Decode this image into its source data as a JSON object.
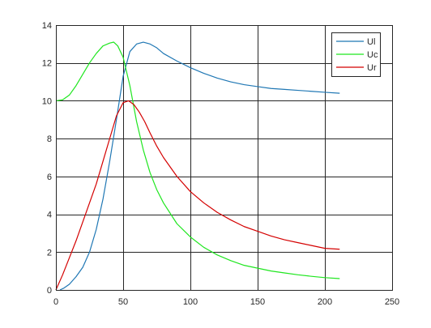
{
  "chart_data": {
    "type": "line",
    "title": "",
    "xlabel": "",
    "ylabel": "",
    "xlim": [
      0,
      250
    ],
    "ylim": [
      0,
      14
    ],
    "xticks": [
      0,
      50,
      100,
      150,
      200,
      250
    ],
    "yticks": [
      0,
      2,
      4,
      6,
      8,
      10,
      12,
      14
    ],
    "xtick_labels": [
      "0",
      "50",
      "100",
      "150",
      "200",
      "250"
    ],
    "ytick_labels": [
      "0",
      "2",
      "4",
      "6",
      "8",
      "10",
      "12",
      "14"
    ],
    "grid": true,
    "legend": "top-right",
    "series": [
      {
        "name": "Ul",
        "color": "#1f77b4",
        "x": [
          3,
          6,
          10,
          15,
          20,
          25,
          30,
          35,
          40,
          45,
          50,
          55,
          60,
          65,
          70,
          75,
          80,
          90,
          100,
          110,
          120,
          130,
          140,
          150,
          160,
          170,
          180,
          190,
          200,
          211
        ],
        "y": [
          0.0,
          0.1,
          0.3,
          0.7,
          1.2,
          2.0,
          3.2,
          4.8,
          6.8,
          9.0,
          11.3,
          12.6,
          13.0,
          13.1,
          13.0,
          12.8,
          12.5,
          12.1,
          11.75,
          11.45,
          11.2,
          11.0,
          10.85,
          10.75,
          10.65,
          10.6,
          10.55,
          10.5,
          10.45,
          10.4
        ]
      },
      {
        "name": "Uc",
        "color": "#1fe61f",
        "x": [
          0,
          5,
          10,
          15,
          20,
          25,
          30,
          35,
          40,
          43,
          46,
          50,
          55,
          60,
          65,
          70,
          75,
          80,
          90,
          100,
          110,
          120,
          130,
          140,
          150,
          160,
          170,
          180,
          190,
          200,
          211
        ],
        "y": [
          10.0,
          10.05,
          10.3,
          10.8,
          11.4,
          12.0,
          12.5,
          12.9,
          13.05,
          13.1,
          12.9,
          12.3,
          10.8,
          8.9,
          7.4,
          6.2,
          5.3,
          4.6,
          3.5,
          2.8,
          2.25,
          1.85,
          1.55,
          1.3,
          1.15,
          1.0,
          0.9,
          0.8,
          0.72,
          0.65,
          0.6
        ]
      },
      {
        "name": "Ur",
        "color": "#d40000",
        "x": [
          0,
          5,
          10,
          15,
          20,
          25,
          30,
          35,
          40,
          45,
          50,
          54,
          58,
          62,
          66,
          70,
          75,
          80,
          90,
          100,
          110,
          120,
          130,
          140,
          150,
          160,
          170,
          180,
          190,
          200,
          211
        ],
        "y": [
          0.0,
          0.8,
          1.7,
          2.6,
          3.6,
          4.6,
          5.6,
          6.8,
          8.0,
          9.2,
          9.9,
          10.0,
          9.8,
          9.4,
          8.9,
          8.3,
          7.6,
          7.0,
          6.0,
          5.2,
          4.6,
          4.1,
          3.7,
          3.35,
          3.1,
          2.85,
          2.65,
          2.5,
          2.35,
          2.2,
          2.15
        ]
      }
    ]
  }
}
